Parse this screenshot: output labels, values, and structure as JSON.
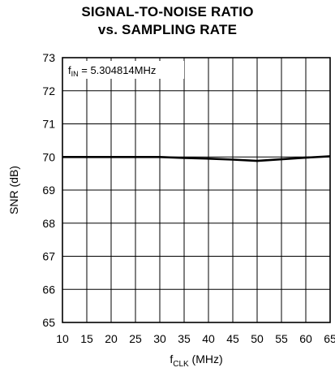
{
  "chart_data": {
    "type": "line",
    "title": "SIGNAL-TO-NOISE RATIO",
    "subtitle": "vs. SAMPLING RATE",
    "xlabel": {
      "main": "f",
      "sub": "CLK",
      "rest": " (MHz)"
    },
    "ylabel": "SNR (dB)",
    "xlim": [
      10,
      65
    ],
    "ylim": [
      65,
      73
    ],
    "xticks": [
      10,
      15,
      20,
      25,
      30,
      35,
      40,
      45,
      50,
      55,
      60,
      65
    ],
    "yticks": [
      65,
      66,
      67,
      68,
      69,
      70,
      71,
      72,
      73
    ],
    "grid": true,
    "annotation": {
      "main": "f",
      "sub": "IN",
      "rest": " = 5.304814MHz"
    },
    "series": [
      {
        "x": [
          10,
          15,
          20,
          25,
          30,
          35,
          40,
          45,
          50,
          55,
          60,
          65
        ],
        "values": [
          70.0,
          70.0,
          70.0,
          70.0,
          70.0,
          69.97,
          69.95,
          69.92,
          69.88,
          69.93,
          69.98,
          70.02
        ]
      }
    ]
  }
}
